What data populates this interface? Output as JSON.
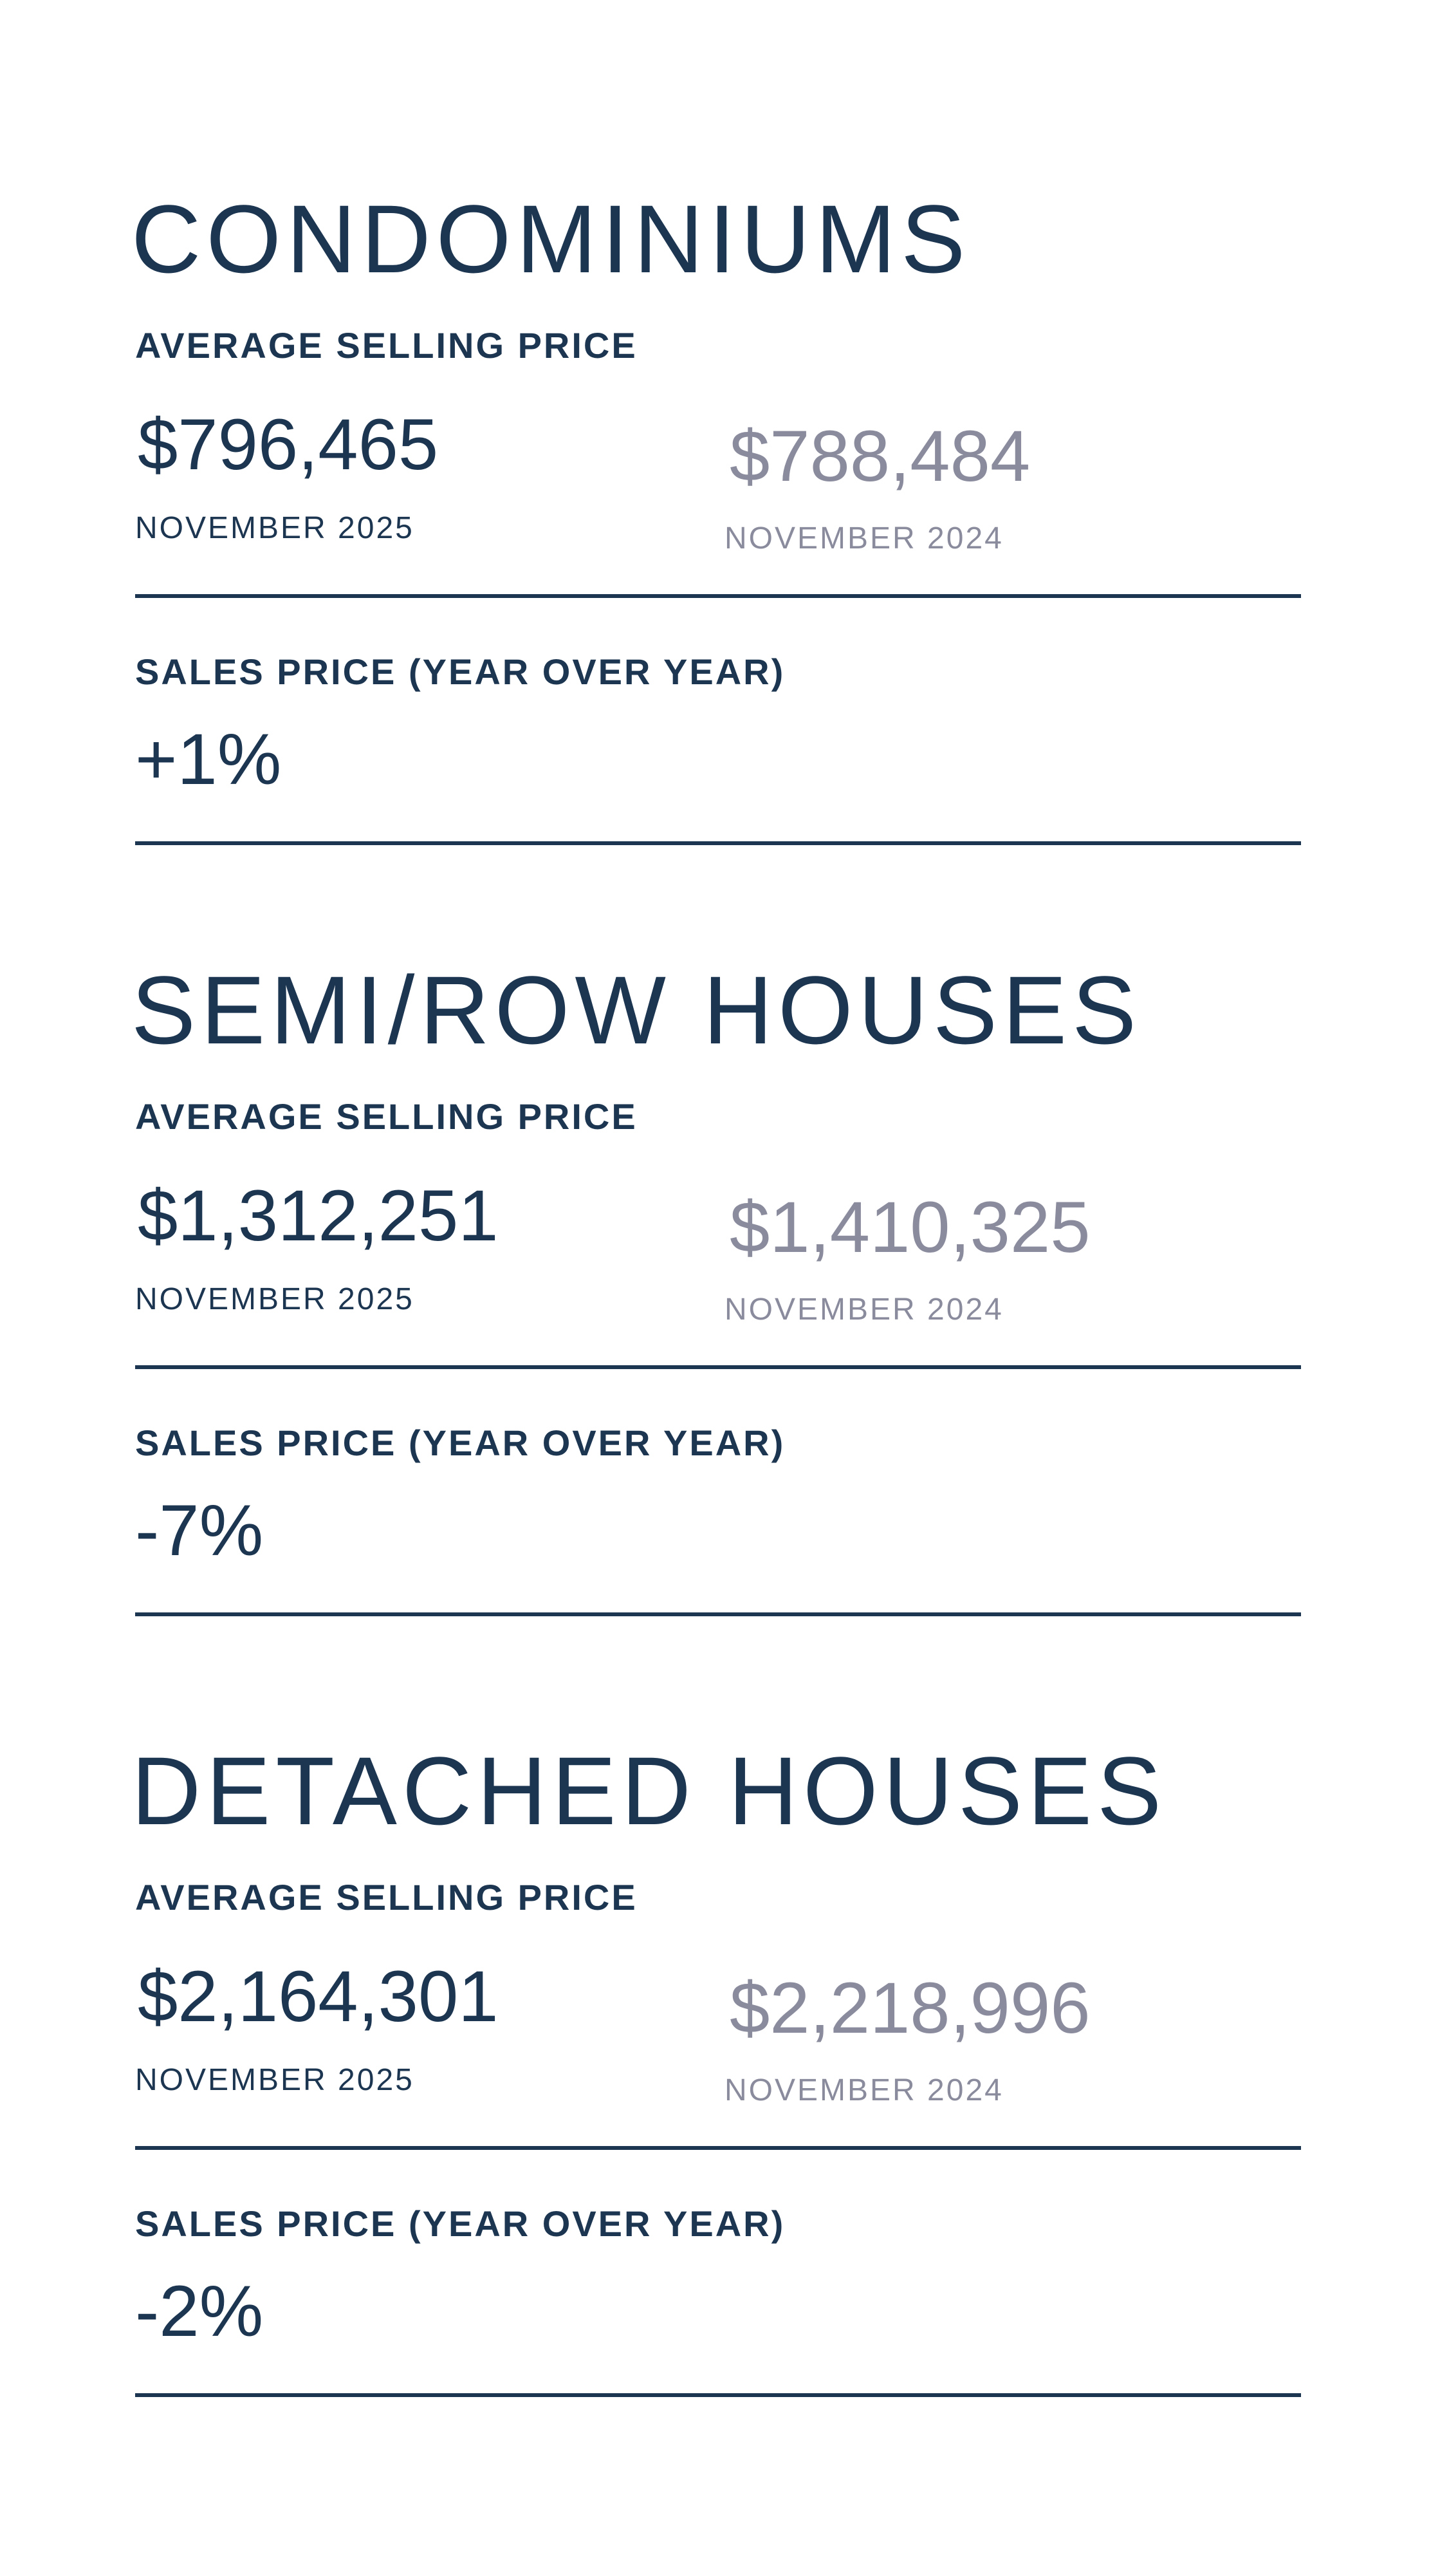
{
  "sections": [
    {
      "title": "CONDOMINIUMS",
      "average_label": "AVERAGE SELLING PRICE",
      "current_price": "$796,465",
      "current_date": "NOVEMBER 2025",
      "prior_price": "$788,484",
      "prior_date": "NOVEMBER 2024",
      "yoy_label": "SALES PRICE (YEAR OVER YEAR)",
      "yoy_value": "+1%"
    },
    {
      "title": "SEMI/ROW HOUSES",
      "average_label": "AVERAGE SELLING PRICE",
      "current_price": "$1,312,251",
      "current_date": "NOVEMBER 2025",
      "prior_price": "$1,410,325",
      "prior_date": "NOVEMBER 2024",
      "yoy_label": "SALES PRICE (YEAR OVER YEAR)",
      "yoy_value": "-7%"
    },
    {
      "title": "DETACHED HOUSES",
      "average_label": "AVERAGE SELLING PRICE",
      "current_price": "$2,164,301",
      "current_date": "NOVEMBER 2025",
      "prior_price": "$2,218,996",
      "prior_date": "NOVEMBER 2024",
      "yoy_label": "SALES PRICE (YEAR OVER YEAR)",
      "yoy_value": "-2%"
    }
  ]
}
